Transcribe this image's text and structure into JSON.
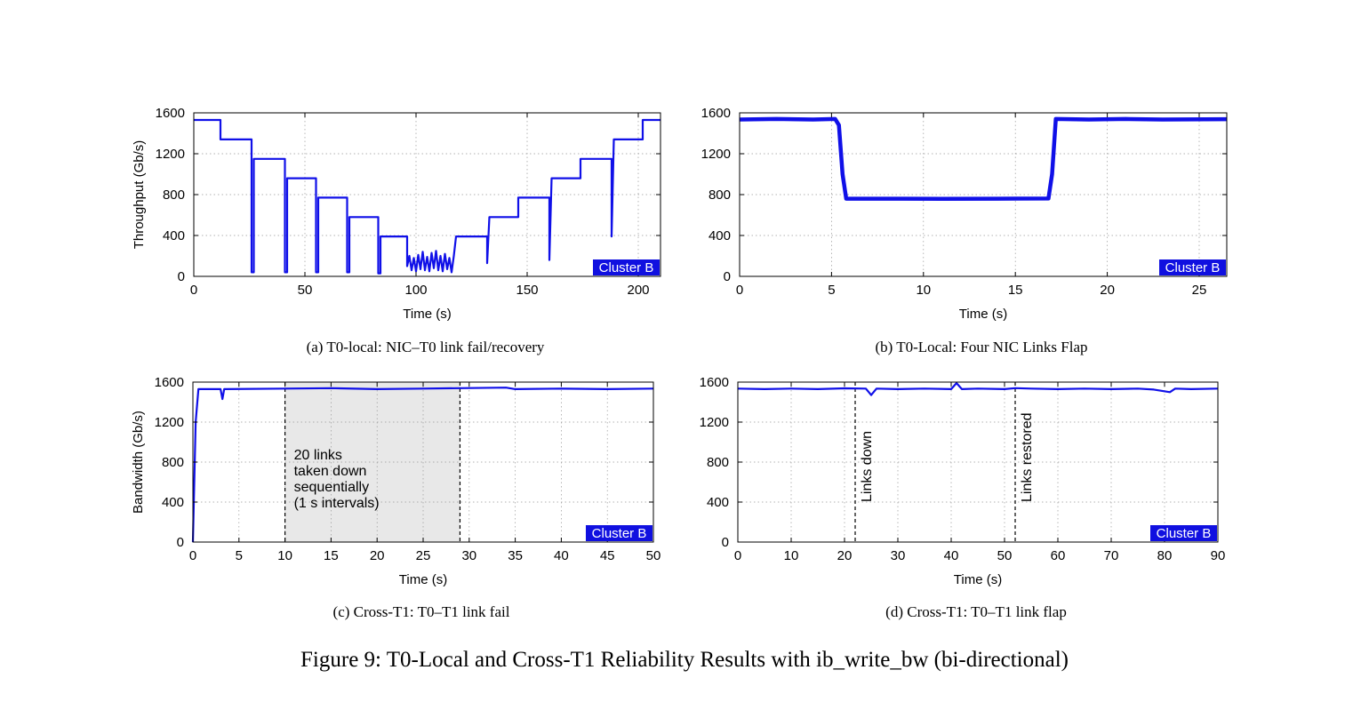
{
  "figure_caption": "Figure 9: T0-Local and Cross-T1 Reliability Results with ib_write_bw (bi-directional)",
  "colors": {
    "series": "#1010e8",
    "badge_bg": "#1010e0",
    "badge_text": "#ffffff",
    "shade": "#e8e8e8",
    "grid": "#999999"
  },
  "chart_data": [
    {
      "id": "a",
      "type": "line",
      "caption": "(a) T0-local: NIC–T0 link fail/recovery",
      "xlabel": "Time (s)",
      "ylabel": "Throughput (Gb/s)",
      "xlim": [
        0,
        210
      ],
      "ylim": [
        0,
        1600
      ],
      "xticks": [
        0,
        50,
        100,
        150,
        200
      ],
      "yticks": [
        0,
        400,
        800,
        1200,
        1600
      ],
      "grid": true,
      "badge": "Cluster B",
      "badge_position": "bottom-right",
      "series": [
        {
          "values": [
            [
              0,
              1530
            ],
            [
              12,
              1530
            ],
            [
              12,
              1340
            ],
            [
              26,
              1340
            ],
            [
              26,
              40
            ],
            [
              27,
              40
            ],
            [
              27,
              1150
            ],
            [
              41,
              1150
            ],
            [
              41,
              40
            ],
            [
              42,
              40
            ],
            [
              42,
              960
            ],
            [
              55,
              960
            ],
            [
              55,
              40
            ],
            [
              56,
              40
            ],
            [
              56,
              770
            ],
            [
              69,
              770
            ],
            [
              69,
              40
            ],
            [
              70,
              40
            ],
            [
              70,
              580
            ],
            [
              83,
              580
            ],
            [
              83,
              30
            ],
            [
              84,
              30
            ],
            [
              84,
              390
            ],
            [
              96,
              390
            ],
            [
              96,
              100
            ],
            [
              97,
              200
            ],
            [
              98,
              60
            ],
            [
              99,
              180
            ],
            [
              100,
              50
            ],
            [
              101,
              210
            ],
            [
              102,
              70
            ],
            [
              103,
              240
            ],
            [
              104,
              60
            ],
            [
              105,
              190
            ],
            [
              106,
              50
            ],
            [
              107,
              230
            ],
            [
              108,
              80
            ],
            [
              109,
              250
            ],
            [
              110,
              60
            ],
            [
              111,
              200
            ],
            [
              112,
              50
            ],
            [
              113,
              220
            ],
            [
              114,
              70
            ],
            [
              115,
              180
            ],
            [
              116,
              40
            ],
            [
              117,
              200
            ],
            [
              118,
              390
            ],
            [
              132,
              390
            ],
            [
              132,
              130
            ],
            [
              133,
              580
            ],
            [
              146,
              580
            ],
            [
              146,
              770
            ],
            [
              160,
              770
            ],
            [
              160,
              160
            ],
            [
              161,
              960
            ],
            [
              174,
              960
            ],
            [
              174,
              1150
            ],
            [
              188,
              1150
            ],
            [
              188,
              390
            ],
            [
              189,
              1340
            ],
            [
              202,
              1340
            ],
            [
              202,
              1530
            ],
            [
              210,
              1530
            ]
          ]
        }
      ]
    },
    {
      "id": "b",
      "type": "line",
      "caption": "(b) T0-Local: Four NIC Links Flap",
      "xlabel": "Time (s)",
      "ylabel": "",
      "xlim": [
        0,
        26.5
      ],
      "ylim": [
        0,
        1600
      ],
      "xticks": [
        0,
        5,
        10,
        15,
        20,
        25
      ],
      "yticks": [
        0,
        400,
        800,
        1200,
        1600
      ],
      "grid": true,
      "badge": "Cluster B",
      "badge_position": "bottom-right",
      "series": [
        {
          "values": [
            [
              0,
              1535
            ],
            [
              2,
              1540
            ],
            [
              4,
              1535
            ],
            [
              5.2,
              1540
            ],
            [
              5.4,
              1480
            ],
            [
              5.6,
              1000
            ],
            [
              5.8,
              760
            ],
            [
              8,
              760
            ],
            [
              11,
              758
            ],
            [
              14,
              760
            ],
            [
              16.8,
              762
            ],
            [
              17.0,
              1000
            ],
            [
              17.2,
              1540
            ],
            [
              19,
              1535
            ],
            [
              21,
              1540
            ],
            [
              23,
              1535
            ],
            [
              26.5,
              1538
            ]
          ]
        }
      ]
    },
    {
      "id": "c",
      "type": "line",
      "caption": "(c) Cross-T1: T0–T1 link fail",
      "xlabel": "Time (s)",
      "ylabel": "Bandwidth (Gb/s)",
      "xlim": [
        0,
        50
      ],
      "ylim": [
        0,
        1600
      ],
      "xticks": [
        0,
        5,
        10,
        15,
        20,
        25,
        30,
        35,
        40,
        45,
        50
      ],
      "yticks": [
        0,
        400,
        800,
        1200,
        1600
      ],
      "grid": true,
      "badge": "Cluster B",
      "badge_position": "bottom-right",
      "shaded_region": [
        10,
        29
      ],
      "vlines": [
        10,
        29
      ],
      "annotation": [
        "20 links",
        "taken down",
        "sequentially",
        "(1 s intervals)"
      ],
      "series": [
        {
          "values": [
            [
              0,
              0
            ],
            [
              0.3,
              1200
            ],
            [
              0.6,
              1530
            ],
            [
              3,
              1530
            ],
            [
              3.2,
              1430
            ],
            [
              3.4,
              1530
            ],
            [
              10,
              1535
            ],
            [
              15,
              1540
            ],
            [
              20,
              1530
            ],
            [
              25,
              1535
            ],
            [
              29,
              1540
            ],
            [
              34,
              1545
            ],
            [
              35,
              1530
            ],
            [
              40,
              1535
            ],
            [
              45,
              1530
            ],
            [
              50,
              1535
            ]
          ]
        }
      ]
    },
    {
      "id": "d",
      "type": "line",
      "caption": "(d) Cross-T1: T0–T1 link flap",
      "xlabel": "Time (s)",
      "ylabel": "",
      "xlim": [
        0,
        90
      ],
      "ylim": [
        0,
        1600
      ],
      "xticks": [
        0,
        10,
        20,
        30,
        40,
        50,
        60,
        70,
        80,
        90
      ],
      "yticks": [
        0,
        400,
        800,
        1200,
        1600
      ],
      "grid": true,
      "badge": "Cluster B",
      "badge_position": "bottom-right",
      "vlines": [
        22,
        52
      ],
      "vline_labels": [
        "Links down",
        "Links restored"
      ],
      "series": [
        {
          "values": [
            [
              0,
              1535
            ],
            [
              5,
              1530
            ],
            [
              10,
              1535
            ],
            [
              15,
              1530
            ],
            [
              20,
              1538
            ],
            [
              24,
              1535
            ],
            [
              25,
              1470
            ],
            [
              26,
              1535
            ],
            [
              30,
              1530
            ],
            [
              35,
              1535
            ],
            [
              40,
              1530
            ],
            [
              41,
              1590
            ],
            [
              42,
              1530
            ],
            [
              45,
              1535
            ],
            [
              50,
              1530
            ],
            [
              52,
              1540
            ],
            [
              55,
              1535
            ],
            [
              60,
              1530
            ],
            [
              65,
              1535
            ],
            [
              70,
              1530
            ],
            [
              75,
              1535
            ],
            [
              78,
              1525
            ],
            [
              81,
              1500
            ],
            [
              82,
              1535
            ],
            [
              85,
              1530
            ],
            [
              90,
              1535
            ]
          ]
        }
      ]
    }
  ]
}
